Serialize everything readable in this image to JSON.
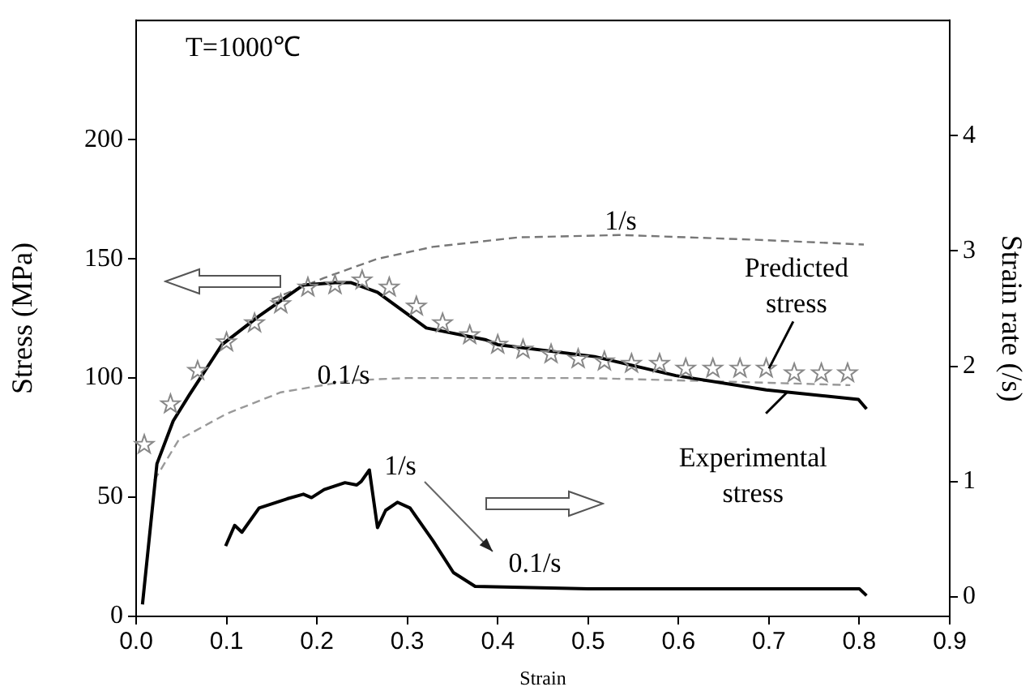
{
  "chart_data": {
    "type": "line",
    "xlabel": "Strain",
    "ylabel": "Stress (MPa)",
    "y2label": "Strain rate (/s)",
    "xlim": [
      0,
      0.9
    ],
    "xticks": [
      {
        "value": 0,
        "label": "0.0"
      },
      0.1,
      0.2,
      0.3,
      0.4,
      0.5,
      0.6,
      0.7,
      0.8,
      0.9
    ],
    "ylim": [
      0,
      250
    ],
    "yticks": [
      0,
      50,
      100,
      150,
      200
    ],
    "y2lim": [
      -0.17,
      5
    ],
    "y2ticks": [
      0,
      1,
      2,
      3,
      4
    ],
    "grid": false,
    "legend": false,
    "series": [
      {
        "color": "#000000",
        "x": [
          0.007,
          0.023,
          0.041,
          0.059,
          0.095,
          0.136,
          0.185,
          0.22,
          0.238,
          0.267,
          0.321,
          0.387,
          0.4,
          0.507,
          0.597,
          0.697,
          0.799,
          0.808
        ],
        "values": [
          5,
          64,
          82,
          93,
          114,
          126,
          139,
          140,
          140,
          136,
          121,
          116,
          114,
          109,
          101,
          95,
          91,
          87
        ]
      },
      {
        "type": "scatter",
        "marker": "star",
        "color": "#888888",
        "x": [
          0.009,
          0.038,
          0.068,
          0.1,
          0.131,
          0.16,
          0.19,
          0.22,
          0.25,
          0.28,
          0.31,
          0.339,
          0.369,
          0.4,
          0.428,
          0.459,
          0.489,
          0.518,
          0.548,
          0.579,
          0.608,
          0.638,
          0.668,
          0.697,
          0.728,
          0.758,
          0.787
        ],
        "values": [
          72,
          89,
          103,
          115,
          123,
          131,
          138,
          139,
          141,
          138,
          130,
          123,
          118,
          114,
          112,
          110,
          108,
          107,
          106,
          106,
          104,
          104,
          104,
          104,
          102,
          102,
          102
        ]
      },
      {
        "line_style": "dashed",
        "color": "#999999",
        "x": [
          0.02,
          0.047,
          0.1,
          0.16,
          0.238,
          0.3,
          0.423,
          0.5,
          0.6,
          0.7,
          0.79
        ],
        "values": [
          57,
          74,
          85,
          94,
          99,
          100,
          100,
          100,
          99,
          98,
          97
        ]
      },
      {
        "line_style": "dashed",
        "color": "#777777",
        "x": [
          0.15,
          0.208,
          0.267,
          0.328,
          0.423,
          0.536,
          0.686,
          0.805
        ],
        "values": [
          133,
          142,
          150,
          155,
          159,
          160,
          158,
          156
        ]
      },
      {
        "axis": "y2",
        "color": "#000000",
        "x": [
          0.099,
          0.109,
          0.117,
          0.136,
          0.167,
          0.185,
          0.194,
          0.208,
          0.231,
          0.244,
          0.249,
          0.258,
          0.267,
          0.276,
          0.289,
          0.303,
          0.328,
          0.351,
          0.375,
          0.5,
          0.6,
          0.7,
          0.8,
          0.808
        ],
        "values": [
          0.44,
          0.62,
          0.56,
          0.77,
          0.85,
          0.89,
          0.86,
          0.93,
          0.99,
          0.97,
          1.0,
          1.1,
          0.6,
          0.75,
          0.82,
          0.77,
          0.49,
          0.21,
          0.09,
          0.07,
          0.07,
          0.07,
          0.07,
          0.01
        ]
      }
    ],
    "annotations": [
      "T=1000℃",
      "1/s",
      "0.1/s",
      {
        "text": "Predicted stress",
        "x": 0.7,
        "y": 104
      },
      {
        "text": "Experimental stress",
        "x": 0.72,
        "y": 94
      },
      "1/s",
      "0.1/s"
    ]
  }
}
